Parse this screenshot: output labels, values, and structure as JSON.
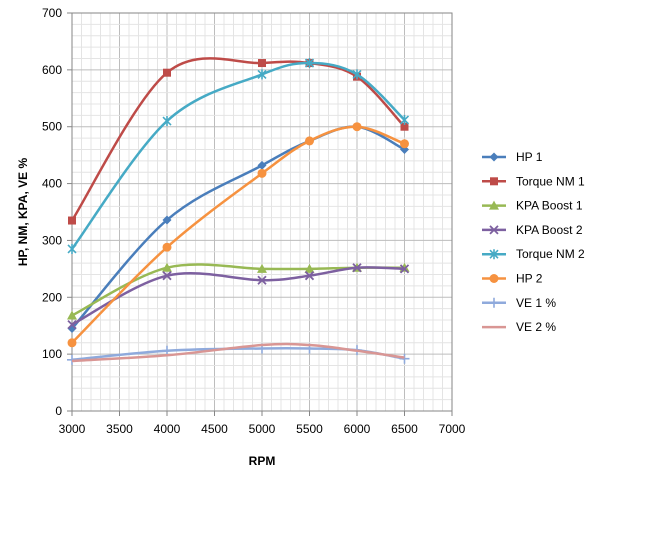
{
  "chart_data": {
    "type": "line",
    "title": "",
    "xlabel": "RPM",
    "ylabel": "HP, NM, KPA, VE %",
    "xlim": [
      3000,
      7000
    ],
    "ylim": [
      0,
      700
    ],
    "x_ticks": [
      3000,
      3500,
      4000,
      4500,
      5000,
      5500,
      6000,
      6500,
      7000
    ],
    "y_ticks": [
      0,
      100,
      200,
      300,
      400,
      500,
      600,
      700
    ],
    "x_minor_step": 100,
    "y_minor_step": 20,
    "grid": true,
    "legend_position": "right",
    "smooth": true,
    "x": [
      3000,
      4000,
      5000,
      5500,
      6000,
      6500
    ],
    "series": [
      {
        "name": "HP 1",
        "color": "#4A7EBB",
        "marker": "diamond",
        "values": [
          145,
          336,
          432,
          475,
          500,
          460
        ]
      },
      {
        "name": "Torque NM 1",
        "color": "#BE4B48",
        "marker": "square",
        "values": [
          335,
          595,
          612,
          612,
          588,
          500
        ]
      },
      {
        "name": "KPA Boost 1",
        "color": "#98B954",
        "marker": "triangle",
        "values": [
          168,
          252,
          250,
          250,
          252,
          252
        ]
      },
      {
        "name": "KPA Boost 2",
        "color": "#7D60A0",
        "marker": "x",
        "values": [
          152,
          238,
          230,
          238,
          252,
          250
        ]
      },
      {
        "name": "Torque NM 2",
        "color": "#46AAC5",
        "marker": "star",
        "values": [
          285,
          510,
          592,
          612,
          592,
          512
        ]
      },
      {
        "name": "HP 2",
        "color": "#F69240",
        "marker": "circle",
        "values": [
          120,
          288,
          418,
          475,
          500,
          470
        ]
      },
      {
        "name": "VE 1 %",
        "color": "#8FAADC",
        "marker": "plus",
        "values": [
          90,
          106,
          110,
          110,
          107,
          92
        ]
      },
      {
        "name": "VE 2 %",
        "color": "#D99694",
        "marker": "none",
        "values": [
          88,
          98,
          116,
          116,
          106,
          94
        ]
      }
    ]
  }
}
